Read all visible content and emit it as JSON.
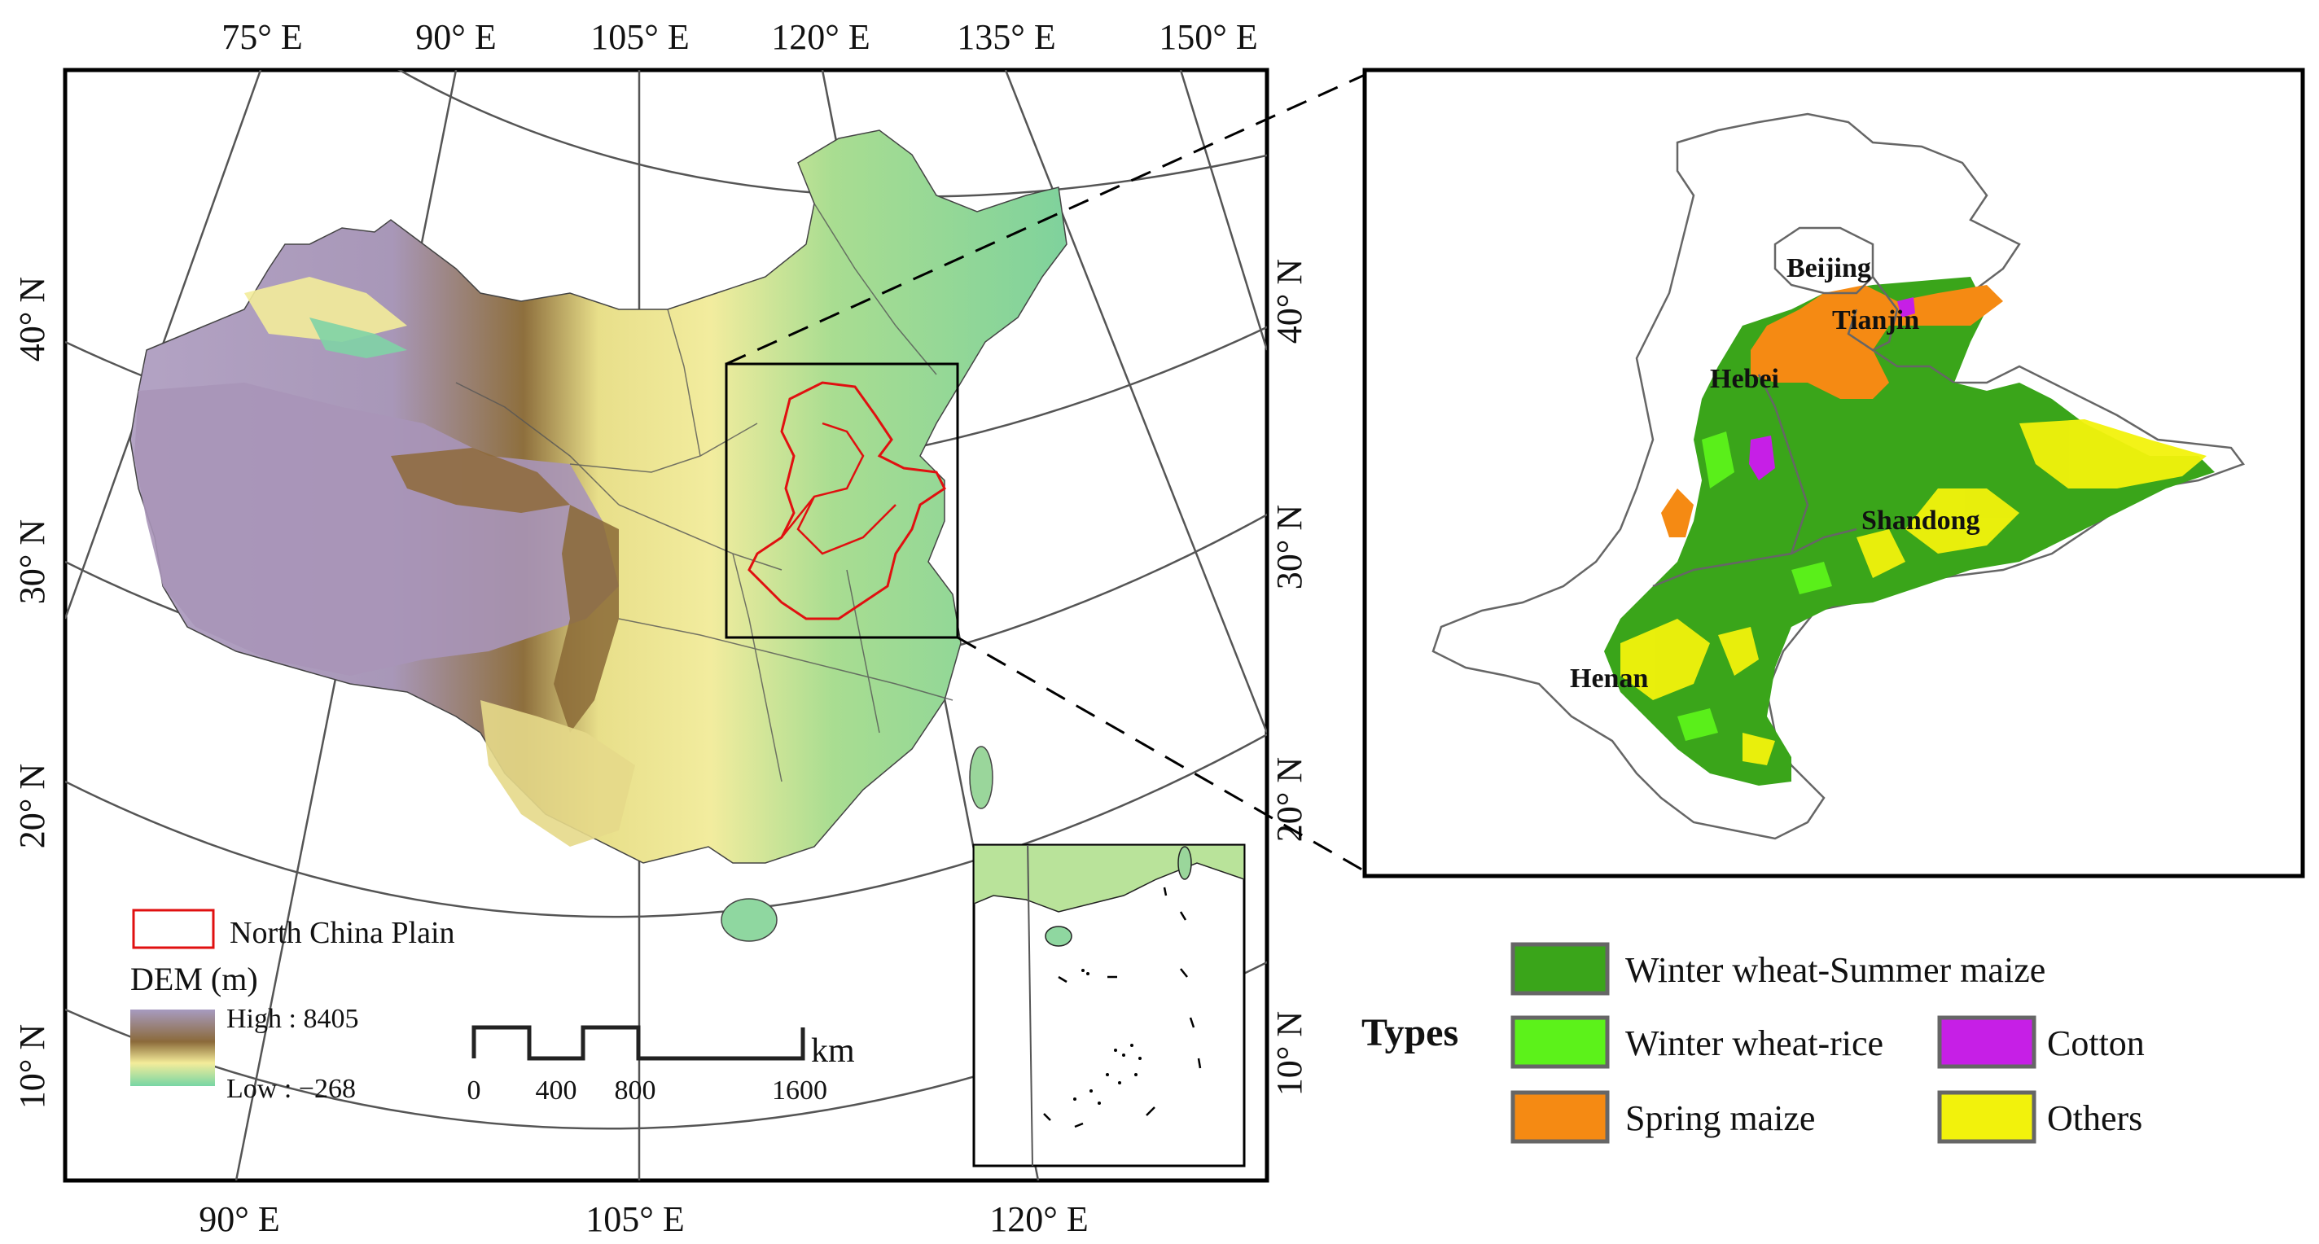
{
  "left_map": {
    "lon_labels_top": [
      "75° E",
      "90° E",
      "105° E",
      "120° E",
      "135° E",
      "150° E"
    ],
    "lon_labels_bottom": [
      "90° E",
      "105° E",
      "120° E"
    ],
    "lat_labels_left": [
      "40° N",
      "30° N",
      "20° N",
      "10° N"
    ],
    "lat_labels_right": [
      "40° N",
      "30° N",
      "20° N",
      "10° N"
    ],
    "legend": {
      "study_area_label": "North China Plain",
      "dem_title": "DEM (m)",
      "dem_high": "High : 8405",
      "dem_low": "Low : −268",
      "dem_colors": [
        "#a79bc0",
        "#8b6a3a",
        "#f4ec9a",
        "#77d6a4"
      ]
    },
    "scale_bar": {
      "ticks": [
        "0",
        "400",
        "800",
        "1600"
      ],
      "unit": "km"
    }
  },
  "right_map": {
    "province_labels": [
      "Beijing",
      "Tianjin",
      "Hebei",
      "Shandong",
      "Henan"
    ]
  },
  "types_legend": {
    "title": "Types",
    "items": [
      {
        "label": "Winter wheat-Summer maize",
        "color": "#3aa51a"
      },
      {
        "label": "Winter wheat-rice",
        "color": "#5cf21a"
      },
      {
        "label": "Cotton",
        "color": "#c61fe6"
      },
      {
        "label": "Spring maize",
        "color": "#f58a13"
      },
      {
        "label": "Others",
        "color": "#f2f20c"
      }
    ]
  }
}
